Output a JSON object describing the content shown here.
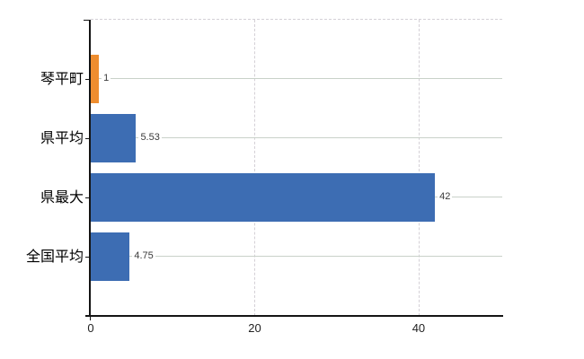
{
  "chart_data": {
    "type": "bar",
    "orientation": "horizontal",
    "title": "",
    "xlabel": "",
    "ylabel": "",
    "categories": [
      "琴平町",
      "県平均",
      "県最大",
      "全国平均"
    ],
    "values": [
      1,
      5.53,
      42,
      4.75
    ],
    "rows": [
      {
        "label": "琴平町",
        "value": 1,
        "value_label": "1",
        "color": "#ee8d2f"
      },
      {
        "label": "県平均",
        "value": 5.53,
        "value_label": "5.53",
        "color": "#3d6db3"
      },
      {
        "label": "県最大",
        "value": 42,
        "value_label": "42",
        "color": "#3d6db3"
      },
      {
        "label": "全国平均",
        "value": 4.75,
        "value_label": "4.75",
        "color": "#3d6db3"
      }
    ],
    "x_axis": {
      "min": 0,
      "max": 50.2,
      "ticks": [
        {
          "value": 0,
          "label": "0"
        },
        {
          "value": 20,
          "label": "20"
        },
        {
          "value": 40,
          "label": "40"
        }
      ]
    },
    "grid": {
      "horizontal": true,
      "vertical_dashed": true,
      "top_border_dashed": true
    },
    "legend": false
  },
  "colors": {
    "bar_blue": "#3d6db3",
    "bar_orange": "#ee8d2f",
    "h_gridline": "#c9d1c9",
    "dashed_gridline": "#d4d0d6",
    "axis": "#141414",
    "label_text": "#000000",
    "value_text": "#3a3a3a",
    "tick_text": "#222222",
    "background": "#ffffff"
  }
}
